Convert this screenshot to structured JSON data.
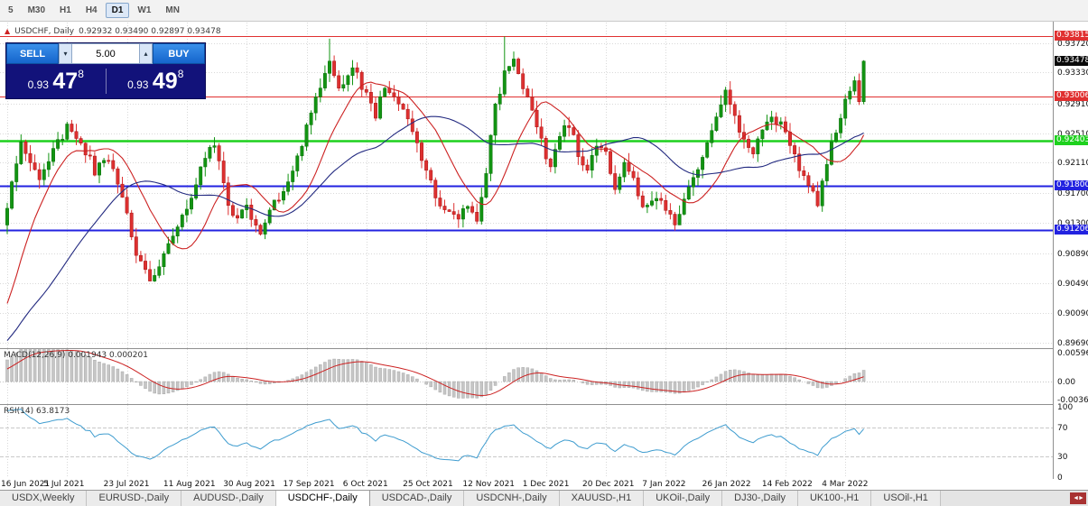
{
  "toolbar": {
    "timeframes": [
      "5",
      "M30",
      "H1",
      "H4",
      "D1",
      "W1",
      "MN"
    ],
    "active": "D1"
  },
  "header": {
    "symbol": "USDCHF, Daily",
    "ohlc": "0.92932 0.93490 0.92897 0.93478"
  },
  "trade_panel": {
    "sell": "SELL",
    "buy": "BUY",
    "volume": "5.00",
    "sell_price": {
      "base": "0.93",
      "big": "47",
      "sup": "8"
    },
    "buy_price": {
      "base": "0.93",
      "big": "49",
      "sup": "8"
    }
  },
  "price_axis": {
    "ticks": [
      {
        "t": "0.93720",
        "v": 0.9372
      },
      {
        "t": "0.93330",
        "v": 0.9333
      },
      {
        "t": "0.92910",
        "v": 0.9291
      },
      {
        "t": "0.92510",
        "v": 0.9251
      },
      {
        "t": "0.92110",
        "v": 0.9211
      },
      {
        "t": "0.91700",
        "v": 0.917
      },
      {
        "t": "0.91300",
        "v": 0.913
      },
      {
        "t": "0.90890",
        "v": 0.9089
      },
      {
        "t": "0.90490",
        "v": 0.9049
      },
      {
        "t": "0.90090",
        "v": 0.9009
      },
      {
        "t": "0.89690",
        "v": 0.8969
      }
    ],
    "levels": [
      {
        "label": "0.93815",
        "price": 0.93815,
        "style": "red",
        "color": "#e03030",
        "width": 1
      },
      {
        "label": "0.93006",
        "price": 0.93006,
        "style": "red",
        "color": "#e03030",
        "width": 1
      },
      {
        "label": "0.92403",
        "price": 0.92403,
        "style": "green",
        "color": "#1ed11e",
        "width": 2.5
      },
      {
        "label": "0.91800",
        "price": 0.918,
        "style": "blue",
        "color": "#2222e0",
        "width": 2
      },
      {
        "label": "0.91206",
        "price": 0.91206,
        "style": "blue",
        "color": "#2222e0",
        "width": 2
      }
    ],
    "current": {
      "label": "0.93478",
      "price": 0.93478,
      "color": "#0a0a0a"
    }
  },
  "macd_panel": {
    "label": "MACD(12,26,9) 0.001943 0.000201",
    "axis_ticks": [
      {
        "t": "0.00596",
        "v": 0.00596
      },
      {
        "t": "0.00",
        "v": 0
      },
      {
        "t": "-0.00366",
        "v": -0.00366
      }
    ]
  },
  "rsi_panel": {
    "label": "RSI(14) 63.8173",
    "axis_ticks": [
      {
        "t": "100",
        "v": 100
      },
      {
        "t": "70",
        "v": 70
      },
      {
        "t": "30",
        "v": 30
      },
      {
        "t": "0",
        "v": 0
      }
    ],
    "levels": [
      70,
      30
    ]
  },
  "tabs": {
    "items": [
      "USDX,Weekly",
      "EURUSD-,Daily",
      "AUDUSD-,Daily",
      "USDCHF-,Daily",
      "USDCAD-,Daily",
      "USDCNH-,Daily",
      "XAUUSD-,H1",
      "UKOil-,Daily",
      "DJ30-,Daily",
      "UK100-,H1",
      "USOil-,H1"
    ],
    "active": "USDCHF-,Daily"
  },
  "chart_data": {
    "type": "candlestick",
    "symbol": "USDCHF",
    "period": "Daily",
    "last_ohlc": {
      "open": 0.92932,
      "high": 0.9349,
      "low": 0.92897,
      "close": 0.93478
    },
    "horizontal_levels": [
      0.93815,
      0.93006,
      0.92403,
      0.918,
      0.91206
    ],
    "indicators": [
      {
        "name": "MACD",
        "params": [
          12,
          26,
          9
        ],
        "values": [
          0.001943,
          0.000201
        ]
      },
      {
        "name": "RSI",
        "params": [
          14
        ],
        "value": 63.8173
      },
      {
        "name": "MA-fast",
        "type": "sma",
        "period": 13,
        "color": "#cc2222"
      },
      {
        "name": "MA-slow",
        "type": "sma",
        "period": 34,
        "color": "#232a80"
      }
    ],
    "x_tick_labels": [
      "16 Jun 2021",
      "5 Jul 2021",
      "23 Jul 2021",
      "11 Aug 2021",
      "30 Aug 2021",
      "17 Sep 2021",
      "6 Oct 2021",
      "25 Oct 2021",
      "12 Nov 2021",
      "1 Dec 2021",
      "20 Dec 2021",
      "7 Jan 2022",
      "26 Jan 2022",
      "14 Feb 2022",
      "4 Mar 2022"
    ],
    "bars_per_tick": 13,
    "visible_bars": 187,
    "y_range": [
      0.895,
      0.9396
    ],
    "price_anchors": [
      [
        0,
        0.9155
      ],
      [
        3,
        0.9235
      ],
      [
        7,
        0.9195
      ],
      [
        10,
        0.9225
      ],
      [
        13,
        0.9258
      ],
      [
        16,
        0.924
      ],
      [
        19,
        0.92
      ],
      [
        22,
        0.9215
      ],
      [
        25,
        0.917
      ],
      [
        28,
        0.909
      ],
      [
        31,
        0.9052
      ],
      [
        33,
        0.9075
      ],
      [
        36,
        0.9108
      ],
      [
        39,
        0.915
      ],
      [
        42,
        0.9205
      ],
      [
        45,
        0.9235
      ],
      [
        48,
        0.916
      ],
      [
        50,
        0.9132
      ],
      [
        52,
        0.915
      ],
      [
        55,
        0.9118
      ],
      [
        58,
        0.9155
      ],
      [
        61,
        0.9185
      ],
      [
        64,
        0.924
      ],
      [
        67,
        0.93
      ],
      [
        70,
        0.9345
      ],
      [
        72,
        0.931
      ],
      [
        75,
        0.934
      ],
      [
        78,
        0.93
      ],
      [
        80,
        0.927
      ],
      [
        82,
        0.9318
      ],
      [
        85,
        0.929
      ],
      [
        88,
        0.925
      ],
      [
        91,
        0.92
      ],
      [
        94,
        0.9155
      ],
      [
        97,
        0.9135
      ],
      [
        100,
        0.9155
      ],
      [
        102,
        0.913
      ],
      [
        104,
        0.92
      ],
      [
        106,
        0.929
      ],
      [
        108,
        0.933
      ],
      [
        110,
        0.9345
      ],
      [
        112,
        0.931
      ],
      [
        114,
        0.9275
      ],
      [
        116,
        0.924
      ],
      [
        118,
        0.9205
      ],
      [
        120,
        0.925
      ],
      [
        122,
        0.9265
      ],
      [
        124,
        0.922
      ],
      [
        126,
        0.92
      ],
      [
        128,
        0.924
      ],
      [
        130,
        0.9225
      ],
      [
        132,
        0.918
      ],
      [
        134,
        0.9215
      ],
      [
        136,
        0.919
      ],
      [
        138,
        0.9145
      ],
      [
        141,
        0.9165
      ],
      [
        143,
        0.915
      ],
      [
        145,
        0.9122
      ],
      [
        147,
        0.916
      ],
      [
        150,
        0.9205
      ],
      [
        153,
        0.926
      ],
      [
        156,
        0.9305
      ],
      [
        158,
        0.927
      ],
      [
        160,
        0.924
      ],
      [
        162,
        0.9225
      ],
      [
        164,
        0.9255
      ],
      [
        166,
        0.927
      ],
      [
        168,
        0.9262
      ],
      [
        170,
        0.923
      ],
      [
        172,
        0.9205
      ],
      [
        174,
        0.918
      ],
      [
        176,
        0.916
      ],
      [
        178,
        0.9215
      ],
      [
        180,
        0.9255
      ],
      [
        182,
        0.929
      ],
      [
        184,
        0.932
      ],
      [
        185,
        0.9293
      ],
      [
        186,
        0.93478
      ]
    ],
    "prehistory_anchors": [
      [
        -45,
        0.8925
      ],
      [
        -12,
        0.8948
      ],
      [
        -7,
        0.8975
      ],
      [
        -4,
        0.904
      ],
      [
        -2,
        0.91
      ],
      [
        -1,
        0.9128
      ]
    ],
    "wick_highs": [
      [
        70,
        0.9378
      ],
      [
        108,
        0.9381
      ]
    ],
    "noise_amplitude": 0.0007,
    "seed": 42
  }
}
